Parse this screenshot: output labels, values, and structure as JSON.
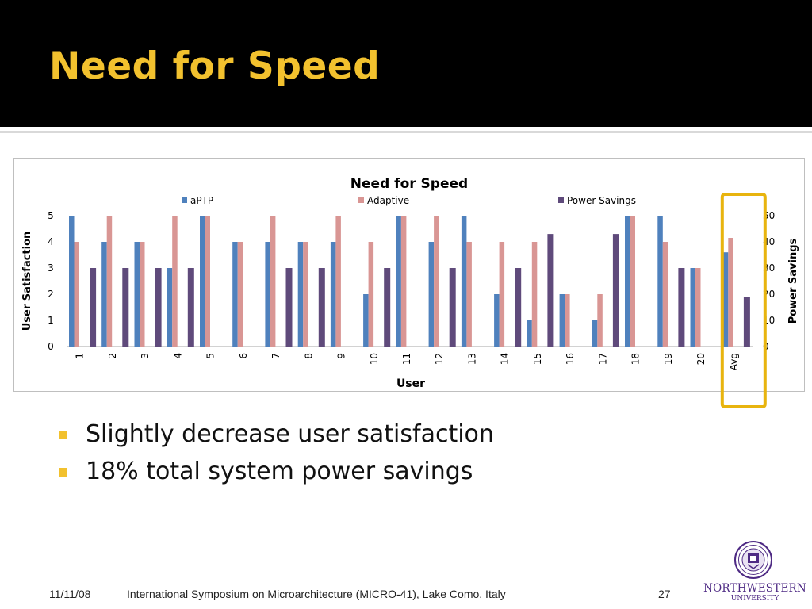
{
  "slide": {
    "title": "Need for Speed",
    "bullets": [
      "Slightly decrease user satisfaction",
      "18% total system power savings"
    ]
  },
  "footer": {
    "date": "11/11/08",
    "conference": "International Symposium on Microarchitecture (MICRO-41), Lake Como, Italy",
    "page": "27"
  },
  "logo": {
    "name": "NORTHWESTERN",
    "subtitle": "UNIVERSITY"
  },
  "colors": {
    "title": "#f2c12e",
    "bullet": "#f2c12e",
    "highlight_box": "#e8b40e",
    "aPTP": "#4f81bd",
    "Adaptive": "#d99694",
    "Power Savings": "#5f4a7b",
    "logo": "#4e2a84"
  },
  "chart_data": {
    "type": "bar",
    "title": "Need for Speed",
    "xlabel": "User",
    "ylabel": "User Satisfaction",
    "y2label": "Power Savings",
    "categories": [
      "1",
      "2",
      "3",
      "4",
      "5",
      "6",
      "7",
      "8",
      "9",
      "10",
      "11",
      "12",
      "13",
      "14",
      "15",
      "16",
      "17",
      "18",
      "19",
      "20",
      "Avg"
    ],
    "ylim": [
      0,
      5
    ],
    "yticks": [
      "0",
      "1",
      "2",
      "3",
      "4",
      "5"
    ],
    "y2lim": [
      0,
      50
    ],
    "y2ticks": [
      "0",
      "10",
      "20",
      "30",
      "40",
      "50"
    ],
    "legend_position": "top",
    "highlighted_category": "Avg",
    "series": [
      {
        "name": "aPTP",
        "axis": "left",
        "values": [
          5,
          4,
          4,
          3,
          5,
          4,
          4,
          4,
          4,
          2,
          5,
          4,
          5,
          2,
          1,
          2,
          1,
          5,
          5,
          3,
          3.6
        ]
      },
      {
        "name": "Adaptive",
        "axis": "left",
        "values": [
          4,
          5,
          4,
          5,
          5,
          4,
          5,
          4,
          5,
          4,
          5,
          5,
          4,
          4,
          4,
          2,
          2,
          5,
          4,
          3,
          4.15
        ]
      },
      {
        "name": "Power Savings",
        "axis": "right",
        "values": [
          30,
          30,
          30,
          30,
          0,
          0,
          30,
          30,
          0,
          30,
          0,
          30,
          0,
          30,
          43,
          0,
          43,
          0,
          30,
          0,
          19
        ]
      }
    ]
  }
}
